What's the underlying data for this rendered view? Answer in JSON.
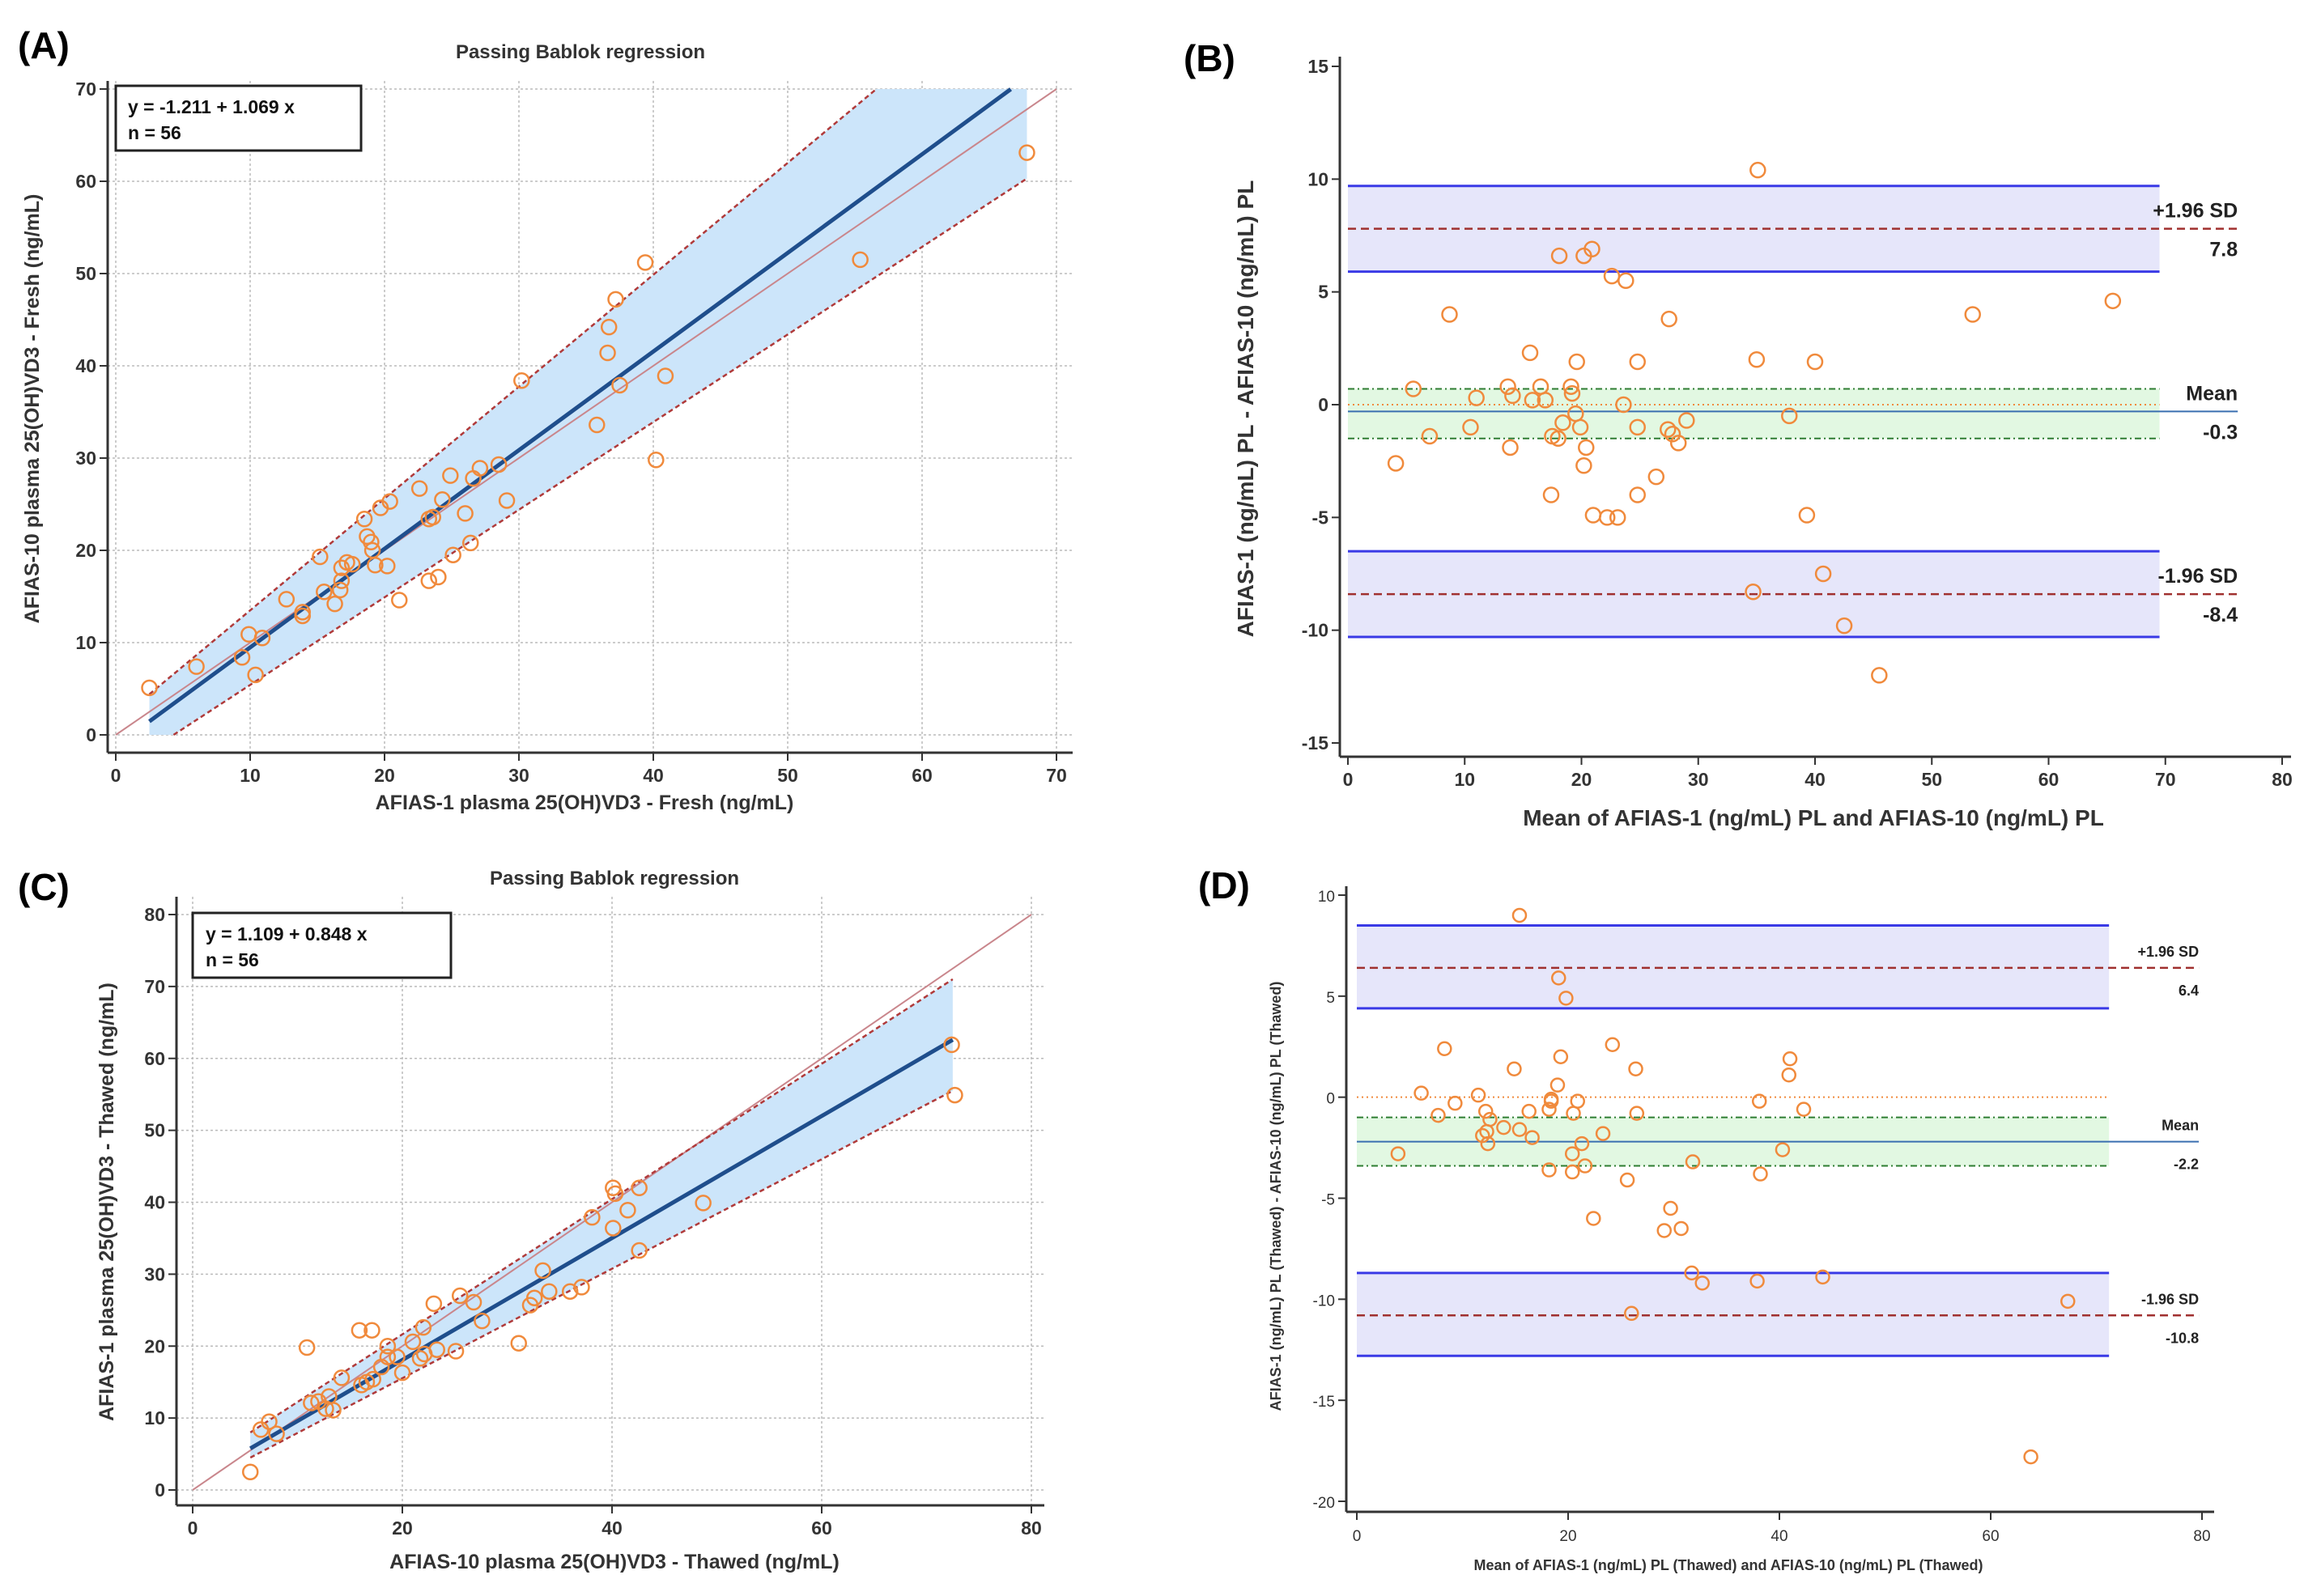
{
  "panels": [
    {
      "label": "(A)"
    },
    {
      "label": "(B)"
    },
    {
      "label": "(C)"
    },
    {
      "label": "(D)"
    }
  ],
  "colors": {
    "point": "#F08A3C",
    "ci_band": "#CCE5FA",
    "regression": "#1F4E8C",
    "identity": "#C9868C",
    "ci_line": "#B03A3A",
    "loa_band": "#E6E6FA",
    "loa_line": "#3A3AE6",
    "mean_band": "#E2F8E2",
    "mean_ci_line": "#2E7D32",
    "mean_line": "#3A6FB0",
    "sd_line": "#A0302F",
    "zero_line": "#F08A3C",
    "axis": "#333333",
    "grid": "#BBBBBB"
  },
  "chart_data": [
    {
      "type": "scatter",
      "title": "Passing Bablok regression",
      "xlabel": "AFIAS-1 plasma 25(OH)VD3 - Fresh (ng/mL)",
      "ylabel": "AFIAS-10 plasma 25(OH)VD3 - Fresh (ng/mL)",
      "xlim": [
        0,
        70
      ],
      "ylim": [
        0,
        70
      ],
      "xticks": [
        0,
        10,
        20,
        30,
        40,
        50,
        60,
        70
      ],
      "yticks": [
        0,
        10,
        20,
        30,
        40,
        50,
        60,
        70
      ],
      "grid": true,
      "legend": {
        "equation": "y = -1.211  +  1.069  x",
        "n": "n = 56",
        "position": "top-left"
      },
      "regression": {
        "intercept": -1.211,
        "slope": 1.069,
        "x_range": [
          2.5,
          66.6
        ]
      },
      "identity": [
        [
          0,
          0
        ],
        [
          70,
          70
        ]
      ],
      "ci_upper": [
        [
          2.5,
          4.4
        ],
        [
          56.6,
          70
        ]
      ],
      "ci_lower": [
        [
          4.3,
          0
        ],
        [
          67.8,
          60.3
        ]
      ],
      "ci_band": [
        [
          2.5,
          0
        ],
        [
          2.5,
          4.4
        ],
        [
          56.6,
          70
        ],
        [
          67.8,
          70
        ],
        [
          67.8,
          60.3
        ],
        [
          4.3,
          0
        ]
      ],
      "points": [
        [
          2.5,
          5.1
        ],
        [
          6.0,
          7.4
        ],
        [
          9.4,
          8.4
        ],
        [
          9.9,
          10.9
        ],
        [
          10.9,
          10.5
        ],
        [
          10.4,
          6.5
        ],
        [
          12.7,
          14.7
        ],
        [
          13.9,
          13.3
        ],
        [
          13.9,
          12.9
        ],
        [
          15.2,
          19.3
        ],
        [
          15.5,
          15.5
        ],
        [
          16.3,
          14.2
        ],
        [
          16.7,
          15.7
        ],
        [
          16.8,
          16.7
        ],
        [
          16.8,
          18.1
        ],
        [
          17.2,
          18.7
        ],
        [
          17.6,
          18.5
        ],
        [
          18.5,
          23.4
        ],
        [
          18.7,
          21.5
        ],
        [
          19.0,
          20.9
        ],
        [
          19.1,
          20.0
        ],
        [
          19.3,
          18.4
        ],
        [
          19.7,
          24.6
        ],
        [
          20.2,
          18.3
        ],
        [
          20.4,
          25.3
        ],
        [
          21.1,
          14.6
        ],
        [
          22.6,
          26.7
        ],
        [
          23.3,
          23.4
        ],
        [
          23.6,
          23.6
        ],
        [
          23.3,
          16.7
        ],
        [
          24.0,
          17.1
        ],
        [
          24.3,
          25.5
        ],
        [
          24.9,
          28.1
        ],
        [
          25.1,
          19.5
        ],
        [
          26.0,
          24.0
        ],
        [
          26.4,
          20.8
        ],
        [
          26.6,
          27.8
        ],
        [
          27.1,
          28.9
        ],
        [
          28.5,
          29.3
        ],
        [
          29.1,
          25.4
        ],
        [
          30.2,
          38.4
        ],
        [
          35.8,
          33.6
        ],
        [
          36.6,
          41.4
        ],
        [
          36.7,
          44.2
        ],
        [
          37.2,
          47.2
        ],
        [
          37.5,
          37.9
        ],
        [
          39.4,
          51.2
        ],
        [
          40.2,
          29.8
        ],
        [
          40.9,
          38.9
        ],
        [
          55.4,
          51.5
        ],
        [
          67.8,
          63.1
        ]
      ]
    },
    {
      "type": "scatter",
      "title": "",
      "xlabel": "Mean of AFIAS-1 (ng/mL) PL and AFIAS-10 (ng/mL)  PL",
      "ylabel": "AFIAS-1 (ng/mL) PL - AFIAS-10 (ng/mL)  PL",
      "xlim": [
        0,
        80
      ],
      "ylim": [
        -15,
        15
      ],
      "xticks": [
        0,
        10,
        20,
        30,
        40,
        50,
        60,
        70,
        80
      ],
      "yticks": [
        -15,
        -10,
        -5,
        0,
        5,
        10,
        15
      ],
      "grid": false,
      "mean": {
        "value": -0.3,
        "label": "Mean",
        "value_label": "-0.3",
        "ci": [
          -1.5,
          0.7
        ]
      },
      "upper_loa": {
        "value": 7.8,
        "label": "+1.96 SD",
        "value_label": "7.8",
        "ci": [
          5.9,
          9.7
        ]
      },
      "lower_loa": {
        "value": -8.4,
        "label": "-1.96 SD",
        "value_label": "-8.4",
        "ci": [
          -10.3,
          -6.5
        ]
      },
      "band_x_range": [
        0,
        69.5
      ],
      "line_x_end": 76.2,
      "points": [
        [
          35.1,
          10.4
        ],
        [
          18.1,
          6.6
        ],
        [
          20.2,
          6.6
        ],
        [
          20.9,
          6.9
        ],
        [
          22.6,
          5.7
        ],
        [
          23.8,
          5.5
        ],
        [
          8.7,
          4.0
        ],
        [
          27.5,
          3.8
        ],
        [
          53.5,
          4.0
        ],
        [
          65.5,
          4.6
        ],
        [
          15.6,
          2.3
        ],
        [
          19.6,
          1.9
        ],
        [
          24.8,
          1.9
        ],
        [
          35.0,
          2.0
        ],
        [
          40.0,
          1.9
        ],
        [
          5.6,
          0.7
        ],
        [
          11.0,
          0.3
        ],
        [
          13.7,
          0.8
        ],
        [
          14.1,
          0.4
        ],
        [
          16.5,
          0.8
        ],
        [
          16.9,
          0.2
        ],
        [
          19.1,
          0.8
        ],
        [
          19.2,
          0.5
        ],
        [
          15.8,
          0.2
        ],
        [
          23.6,
          0.0
        ],
        [
          19.5,
          -0.4
        ],
        [
          19.9,
          -1.0
        ],
        [
          18.4,
          -0.8
        ],
        [
          18.0,
          -1.5
        ],
        [
          17.5,
          -1.4
        ],
        [
          20.4,
          -1.9
        ],
        [
          20.2,
          -2.7
        ],
        [
          27.4,
          -1.1
        ],
        [
          27.8,
          -1.3
        ],
        [
          29.0,
          -0.7
        ],
        [
          28.3,
          -1.7
        ],
        [
          24.8,
          -1.0
        ],
        [
          37.8,
          -0.5
        ],
        [
          7.0,
          -1.4
        ],
        [
          10.5,
          -1.0
        ],
        [
          13.9,
          -1.9
        ],
        [
          4.1,
          -2.6
        ],
        [
          17.4,
          -4.0
        ],
        [
          24.8,
          -4.0
        ],
        [
          26.4,
          -3.2
        ],
        [
          21.0,
          -4.9
        ],
        [
          22.2,
          -5.0
        ],
        [
          23.1,
          -5.0
        ],
        [
          39.3,
          -4.9
        ],
        [
          40.7,
          -7.5
        ],
        [
          34.7,
          -8.3
        ],
        [
          42.5,
          -9.8
        ],
        [
          45.5,
          -12.0
        ]
      ]
    },
    {
      "type": "scatter",
      "title": "Passing Bablok regression",
      "xlabel": "AFIAS-10 plasma 25(OH)VD3 - Thawed (ng/mL)",
      "ylabel": "AFIAS-1 plasma 25(OH)VD3 - Thawed (ng/mL)",
      "xlim": [
        0,
        80
      ],
      "ylim": [
        0,
        80
      ],
      "xticks": [
        0,
        20,
        40,
        60,
        80
      ],
      "yticks": [
        0,
        10,
        20,
        30,
        40,
        50,
        60,
        70,
        80
      ],
      "grid": true,
      "legend": {
        "equation": "y = 1.109  +  0.848  x",
        "n": "n = 56",
        "position": "top-left"
      },
      "regression": {
        "intercept": 1.109,
        "slope": 0.848,
        "x_range": [
          5.5,
          72.5
        ]
      },
      "identity": [
        [
          0,
          0
        ],
        [
          80,
          80
        ]
      ],
      "ci_upper": [
        [
          5.5,
          8.0
        ],
        [
          72.5,
          71.0
        ]
      ],
      "ci_lower": [
        [
          5.5,
          4.5
        ],
        [
          72.5,
          55.5
        ]
      ],
      "ci_band": [
        [
          5.5,
          4.5
        ],
        [
          5.5,
          8.0
        ],
        [
          72.5,
          71.0
        ],
        [
          72.5,
          55.5
        ]
      ],
      "points": [
        [
          72.4,
          61.9
        ],
        [
          72.7,
          54.9
        ],
        [
          48.7,
          39.9
        ],
        [
          40.1,
          42.0
        ],
        [
          40.3,
          41.2
        ],
        [
          42.6,
          42.0
        ],
        [
          41.5,
          38.9
        ],
        [
          38.1,
          37.9
        ],
        [
          40.1,
          36.4
        ],
        [
          42.6,
          33.3
        ],
        [
          33.4,
          30.5
        ],
        [
          34.0,
          27.6
        ],
        [
          36.0,
          27.6
        ],
        [
          37.1,
          28.2
        ],
        [
          32.6,
          26.7
        ],
        [
          32.2,
          25.7
        ],
        [
          31.1,
          20.4
        ],
        [
          25.5,
          27.0
        ],
        [
          26.8,
          26.1
        ],
        [
          27.6,
          23.5
        ],
        [
          23.0,
          25.9
        ],
        [
          22.0,
          22.6
        ],
        [
          21.0,
          20.6
        ],
        [
          25.1,
          19.3
        ],
        [
          23.3,
          19.5
        ],
        [
          10.9,
          19.8
        ],
        [
          15.9,
          22.2
        ],
        [
          17.1,
          22.2
        ],
        [
          18.6,
          20.0
        ],
        [
          18.6,
          18.5
        ],
        [
          19.5,
          18.5
        ],
        [
          21.7,
          18.3
        ],
        [
          22.1,
          18.9
        ],
        [
          18.0,
          17.1
        ],
        [
          17.2,
          15.4
        ],
        [
          16.1,
          14.6
        ],
        [
          14.2,
          15.6
        ],
        [
          20.0,
          16.3
        ],
        [
          16.6,
          15.0
        ],
        [
          12.0,
          12.3
        ],
        [
          12.7,
          11.3
        ],
        [
          13.4,
          11.1
        ],
        [
          13.0,
          13.0
        ],
        [
          7.3,
          9.5
        ],
        [
          6.5,
          8.4
        ],
        [
          8.0,
          7.8
        ],
        [
          5.5,
          2.5
        ],
        [
          11.3,
          12.1
        ]
      ]
    },
    {
      "type": "scatter",
      "title": "",
      "xlabel": "Mean of AFIAS-1 (ng/mL) PL (Thawed) and AFIAS-10 (ng/mL) PL (Thawed)",
      "ylabel": "AFIAS-1 (ng/mL) PL (Thawed) - AFIAS-10 (ng/mL) PL (Thawed)",
      "xlim": [
        0,
        80
      ],
      "ylim": [
        -20,
        10
      ],
      "xticks": [
        0,
        20,
        40,
        60,
        80
      ],
      "yticks": [
        -20,
        -15,
        -10,
        -5,
        0,
        5,
        10
      ],
      "grid": false,
      "mean": {
        "value": -2.2,
        "label": "Mean",
        "value_label": "-2.2",
        "ci": [
          -3.4,
          -1.0
        ]
      },
      "upper_loa": {
        "value": 6.4,
        "label": "+1.96 SD",
        "value_label": "6.4",
        "ci": [
          4.4,
          8.5
        ]
      },
      "lower_loa": {
        "value": -10.8,
        "label": "-1.96 SD",
        "value_label": "-10.8",
        "ci": [
          -12.8,
          -8.7
        ]
      },
      "band_x_range": [
        0,
        71.2
      ],
      "line_x_end": 79.7,
      "points": [
        [
          15.4,
          9.0
        ],
        [
          19.1,
          5.9
        ],
        [
          19.8,
          4.9
        ],
        [
          8.3,
          2.4
        ],
        [
          24.2,
          2.6
        ],
        [
          19.3,
          2.0
        ],
        [
          14.9,
          1.4
        ],
        [
          26.4,
          1.4
        ],
        [
          41.0,
          1.9
        ],
        [
          40.9,
          1.1
        ],
        [
          6.1,
          0.2
        ],
        [
          11.5,
          0.1
        ],
        [
          19.0,
          0.6
        ],
        [
          18.4,
          -0.1
        ],
        [
          18.4,
          -0.2
        ],
        [
          9.3,
          -0.3
        ],
        [
          20.9,
          -0.2
        ],
        [
          38.1,
          -0.2
        ],
        [
          7.7,
          -0.9
        ],
        [
          12.2,
          -0.7
        ],
        [
          16.3,
          -0.7
        ],
        [
          20.5,
          -0.8
        ],
        [
          26.5,
          -0.8
        ],
        [
          42.3,
          -0.6
        ],
        [
          18.2,
          -0.6
        ],
        [
          12.6,
          -1.1
        ],
        [
          13.9,
          -1.5
        ],
        [
          15.4,
          -1.6
        ],
        [
          11.9,
          -1.9
        ],
        [
          12.3,
          -1.7
        ],
        [
          16.6,
          -2.0
        ],
        [
          23.3,
          -1.8
        ],
        [
          12.4,
          -2.3
        ],
        [
          21.3,
          -2.3
        ],
        [
          3.9,
          -2.8
        ],
        [
          20.4,
          -2.8
        ],
        [
          40.3,
          -2.6
        ],
        [
          31.8,
          -3.2
        ],
        [
          18.2,
          -3.6
        ],
        [
          20.4,
          -3.7
        ],
        [
          21.6,
          -3.4
        ],
        [
          38.2,
          -3.8
        ],
        [
          25.6,
          -4.1
        ],
        [
          29.7,
          -5.5
        ],
        [
          22.4,
          -6.0
        ],
        [
          29.1,
          -6.6
        ],
        [
          30.7,
          -6.5
        ],
        [
          31.7,
          -8.7
        ],
        [
          32.7,
          -9.2
        ],
        [
          37.9,
          -9.1
        ],
        [
          44.1,
          -8.9
        ],
        [
          26.0,
          -10.7
        ],
        [
          67.3,
          -10.1
        ],
        [
          63.8,
          -17.8
        ]
      ]
    }
  ]
}
